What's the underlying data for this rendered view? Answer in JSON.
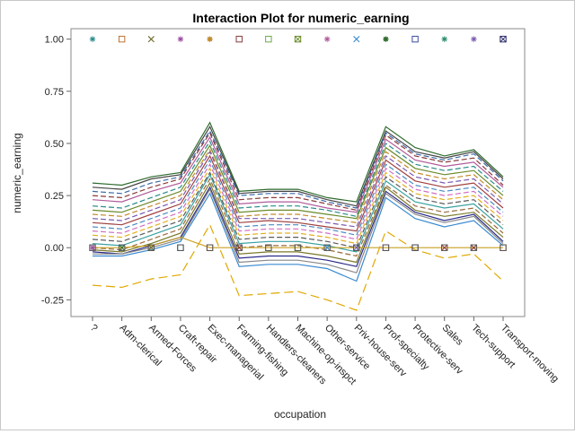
{
  "chart_data": {
    "type": "line",
    "title": "Interaction Plot for numeric_earning",
    "xlabel": "occupation",
    "ylabel": "numeric_earning",
    "ylim": [
      -0.33,
      1.05
    ],
    "yticks": [
      "-0.25",
      "0.00",
      "0.25",
      "0.50",
      "0.75",
      "1.00"
    ],
    "grid": false,
    "categories": [
      "?",
      "Adm-clerical",
      "Armed-Forces",
      "Craft-repair",
      "Exec-managerial",
      "Farming-fishing",
      "Handlers-cleaners",
      "Machine-op-inspct",
      "Other-service",
      "Priv-house-serv",
      "Prof-specialty",
      "Protective-serv",
      "Sales",
      "Tech-support",
      "Transport-moving"
    ],
    "profile": [
      0.1,
      0.09,
      0.14,
      0.18,
      0.44,
      0.1,
      0.11,
      0.1,
      0.07,
      0.03,
      0.4,
      0.26,
      0.23,
      0.25,
      0.15
    ],
    "profile_note_offsets": [
      0.31,
      0.3,
      0.27,
      0.25,
      0.21,
      0.17,
      0.14,
      0.12,
      0.09,
      0.07,
      0.05,
      0.03,
      0.01,
      -0.01,
      -0.03,
      -0.05,
      -0.07,
      -0.09,
      -0.11,
      -0.13
    ],
    "series": [
      {
        "values": [
          0.31,
          0.3,
          0.34,
          0.36,
          0.6,
          0.27,
          0.28,
          0.28,
          0.24,
          0.22,
          0.58,
          0.48,
          0.44,
          0.47,
          0.34
        ],
        "color": "#2e6b2e",
        "dash": "solid"
      },
      {
        "values": [
          0.29,
          0.28,
          0.33,
          0.35,
          0.58,
          0.26,
          0.27,
          0.27,
          0.23,
          0.2,
          0.56,
          0.46,
          0.43,
          0.46,
          0.33
        ],
        "color": "#444444",
        "dash": "solid"
      },
      {
        "values": [
          0.27,
          0.26,
          0.31,
          0.34,
          0.56,
          0.25,
          0.26,
          0.26,
          0.22,
          0.19,
          0.55,
          0.45,
          0.42,
          0.45,
          0.32
        ],
        "color": "#3b6aa8",
        "dash": "dash"
      },
      {
        "values": [
          0.25,
          0.24,
          0.29,
          0.33,
          0.55,
          0.23,
          0.24,
          0.24,
          0.21,
          0.18,
          0.54,
          0.44,
          0.41,
          0.43,
          0.3
        ],
        "color": "#8b3a3a",
        "dash": "dash"
      },
      {
        "values": [
          0.23,
          0.22,
          0.27,
          0.31,
          0.53,
          0.21,
          0.22,
          0.22,
          0.19,
          0.17,
          0.52,
          0.42,
          0.39,
          0.41,
          0.29
        ],
        "color": "#b05a9a",
        "dash": "solid"
      },
      {
        "values": [
          0.2,
          0.19,
          0.24,
          0.29,
          0.51,
          0.19,
          0.2,
          0.2,
          0.18,
          0.15,
          0.5,
          0.4,
          0.37,
          0.39,
          0.27
        ],
        "color": "#2a8a8a",
        "dash": "dash"
      },
      {
        "values": [
          0.18,
          0.17,
          0.22,
          0.27,
          0.49,
          0.17,
          0.18,
          0.18,
          0.16,
          0.14,
          0.48,
          0.38,
          0.35,
          0.37,
          0.25
        ],
        "color": "#6a8a2a",
        "dash": "solid"
      },
      {
        "values": [
          0.16,
          0.15,
          0.2,
          0.25,
          0.47,
          0.15,
          0.16,
          0.16,
          0.14,
          0.12,
          0.46,
          0.36,
          0.33,
          0.35,
          0.23
        ],
        "color": "#c28a2a",
        "dash": "dash"
      },
      {
        "values": [
          0.14,
          0.13,
          0.18,
          0.23,
          0.46,
          0.14,
          0.14,
          0.14,
          0.12,
          0.1,
          0.44,
          0.34,
          0.31,
          0.33,
          0.21
        ],
        "color": "#7a5ab0",
        "dash": "dash"
      },
      {
        "values": [
          0.12,
          0.11,
          0.16,
          0.21,
          0.44,
          0.12,
          0.13,
          0.12,
          0.1,
          0.08,
          0.42,
          0.32,
          0.29,
          0.31,
          0.19
        ],
        "color": "#a04040",
        "dash": "solid"
      },
      {
        "values": [
          0.1,
          0.09,
          0.14,
          0.19,
          0.42,
          0.1,
          0.11,
          0.11,
          0.09,
          0.06,
          0.4,
          0.3,
          0.27,
          0.29,
          0.17
        ],
        "color": "#4a8ac0",
        "dash": "dash"
      },
      {
        "values": [
          0.08,
          0.07,
          0.12,
          0.17,
          0.4,
          0.08,
          0.09,
          0.09,
          0.07,
          0.04,
          0.38,
          0.28,
          0.25,
          0.27,
          0.15
        ],
        "color": "#d070c0",
        "dash": "dash"
      },
      {
        "values": [
          0.06,
          0.05,
          0.1,
          0.15,
          0.38,
          0.06,
          0.07,
          0.07,
          0.05,
          0.02,
          0.36,
          0.26,
          0.23,
          0.25,
          0.13
        ],
        "color": "#e0b020",
        "dash": "dash"
      },
      {
        "values": [
          0.04,
          0.03,
          0.08,
          0.13,
          0.36,
          0.04,
          0.05,
          0.05,
          0.03,
          0.0,
          0.34,
          0.24,
          0.21,
          0.23,
          0.11
        ],
        "color": "#5a5a5a",
        "dash": "dash"
      },
      {
        "values": [
          0.02,
          0.01,
          0.06,
          0.11,
          0.35,
          0.02,
          0.03,
          0.03,
          0.01,
          -0.02,
          0.32,
          0.22,
          0.19,
          0.21,
          0.09
        ],
        "color": "#3aa0a0",
        "dash": "solid"
      },
      {
        "values": [
          0.0,
          -0.01,
          0.04,
          0.09,
          0.33,
          0.0,
          0.01,
          0.01,
          -0.01,
          -0.04,
          0.3,
          0.2,
          0.17,
          0.19,
          0.07
        ],
        "color": "#9a6a3a",
        "dash": "dash"
      },
      {
        "values": [
          -0.01,
          -0.02,
          0.02,
          0.07,
          0.31,
          -0.03,
          -0.02,
          -0.02,
          -0.04,
          -0.07,
          0.29,
          0.18,
          0.15,
          0.17,
          0.05
        ],
        "color": "#7a7a2a",
        "dash": "solid"
      },
      {
        "values": [
          -0.02,
          -0.03,
          0.01,
          0.05,
          0.29,
          -0.05,
          -0.04,
          -0.04,
          -0.06,
          -0.09,
          0.27,
          0.17,
          0.13,
          0.16,
          0.03
        ],
        "color": "#2a2a8a",
        "dash": "solid"
      },
      {
        "values": [
          -0.03,
          -0.03,
          0.0,
          0.04,
          0.28,
          -0.07,
          -0.06,
          -0.06,
          -0.08,
          -0.12,
          0.26,
          0.16,
          0.12,
          0.15,
          0.02
        ],
        "color": "#888888",
        "dash": "solid"
      },
      {
        "values": [
          -0.04,
          -0.04,
          -0.01,
          0.03,
          0.26,
          -0.09,
          -0.08,
          -0.08,
          -0.1,
          -0.16,
          0.24,
          0.14,
          0.1,
          0.13,
          0.01
        ],
        "color": "#3a8ad0",
        "dash": "solid"
      },
      {
        "values": [
          0.0,
          0.0,
          0.01,
          0.05,
          0.0,
          0.0,
          0.0,
          0.0,
          0.0,
          0.0,
          0.0,
          0.0,
          0.0,
          0.0,
          0.0
        ],
        "color": "#c8a020",
        "dash": "solid"
      },
      {
        "values": [
          -0.18,
          -0.19,
          -0.15,
          -0.13,
          0.11,
          -0.23,
          -0.22,
          -0.21,
          -0.25,
          -0.3,
          0.08,
          -0.01,
          -0.05,
          -0.03,
          -0.16
        ],
        "color": "#e0a800",
        "dash": "longdash"
      }
    ],
    "marker_rows": [
      {
        "y": 1.0,
        "markers": [
          "asterisk",
          "box",
          "x",
          "star",
          "sun",
          "box",
          "box",
          "boxx",
          "star",
          "x",
          "sun",
          "box",
          "star",
          "star",
          "boxx"
        ],
        "colors": [
          "#2a8a8a",
          "#c07030",
          "#6a6a2a",
          "#9a4aa0",
          "#c08a2a",
          "#8b3a3a",
          "#6aaa4a",
          "#6a8a2a",
          "#b05a9a",
          "#3a8ad0",
          "#2e6b2e",
          "#3b4aa8",
          "#2a8a6a",
          "#7a5ab0",
          "#2a2a6a"
        ]
      },
      {
        "y": 0.0,
        "markers": [
          "star",
          "x",
          "x",
          "box",
          "box",
          "x",
          "box",
          "box",
          "x",
          "boxx",
          "box",
          "box",
          "x",
          "x",
          "box"
        ],
        "colors": [
          "#9a4aa0",
          "#2e6b2e",
          "#6a6a2a",
          "#2a8a8a",
          "#c07030",
          "#8b3a3a",
          "#c8a020",
          "#6a8a2a",
          "#3a8ad0",
          "#7a5ab0",
          "#b05a9a",
          "#3b4aa8",
          "#a04040",
          "#8b3a3a",
          "#c07030"
        ]
      }
    ]
  }
}
